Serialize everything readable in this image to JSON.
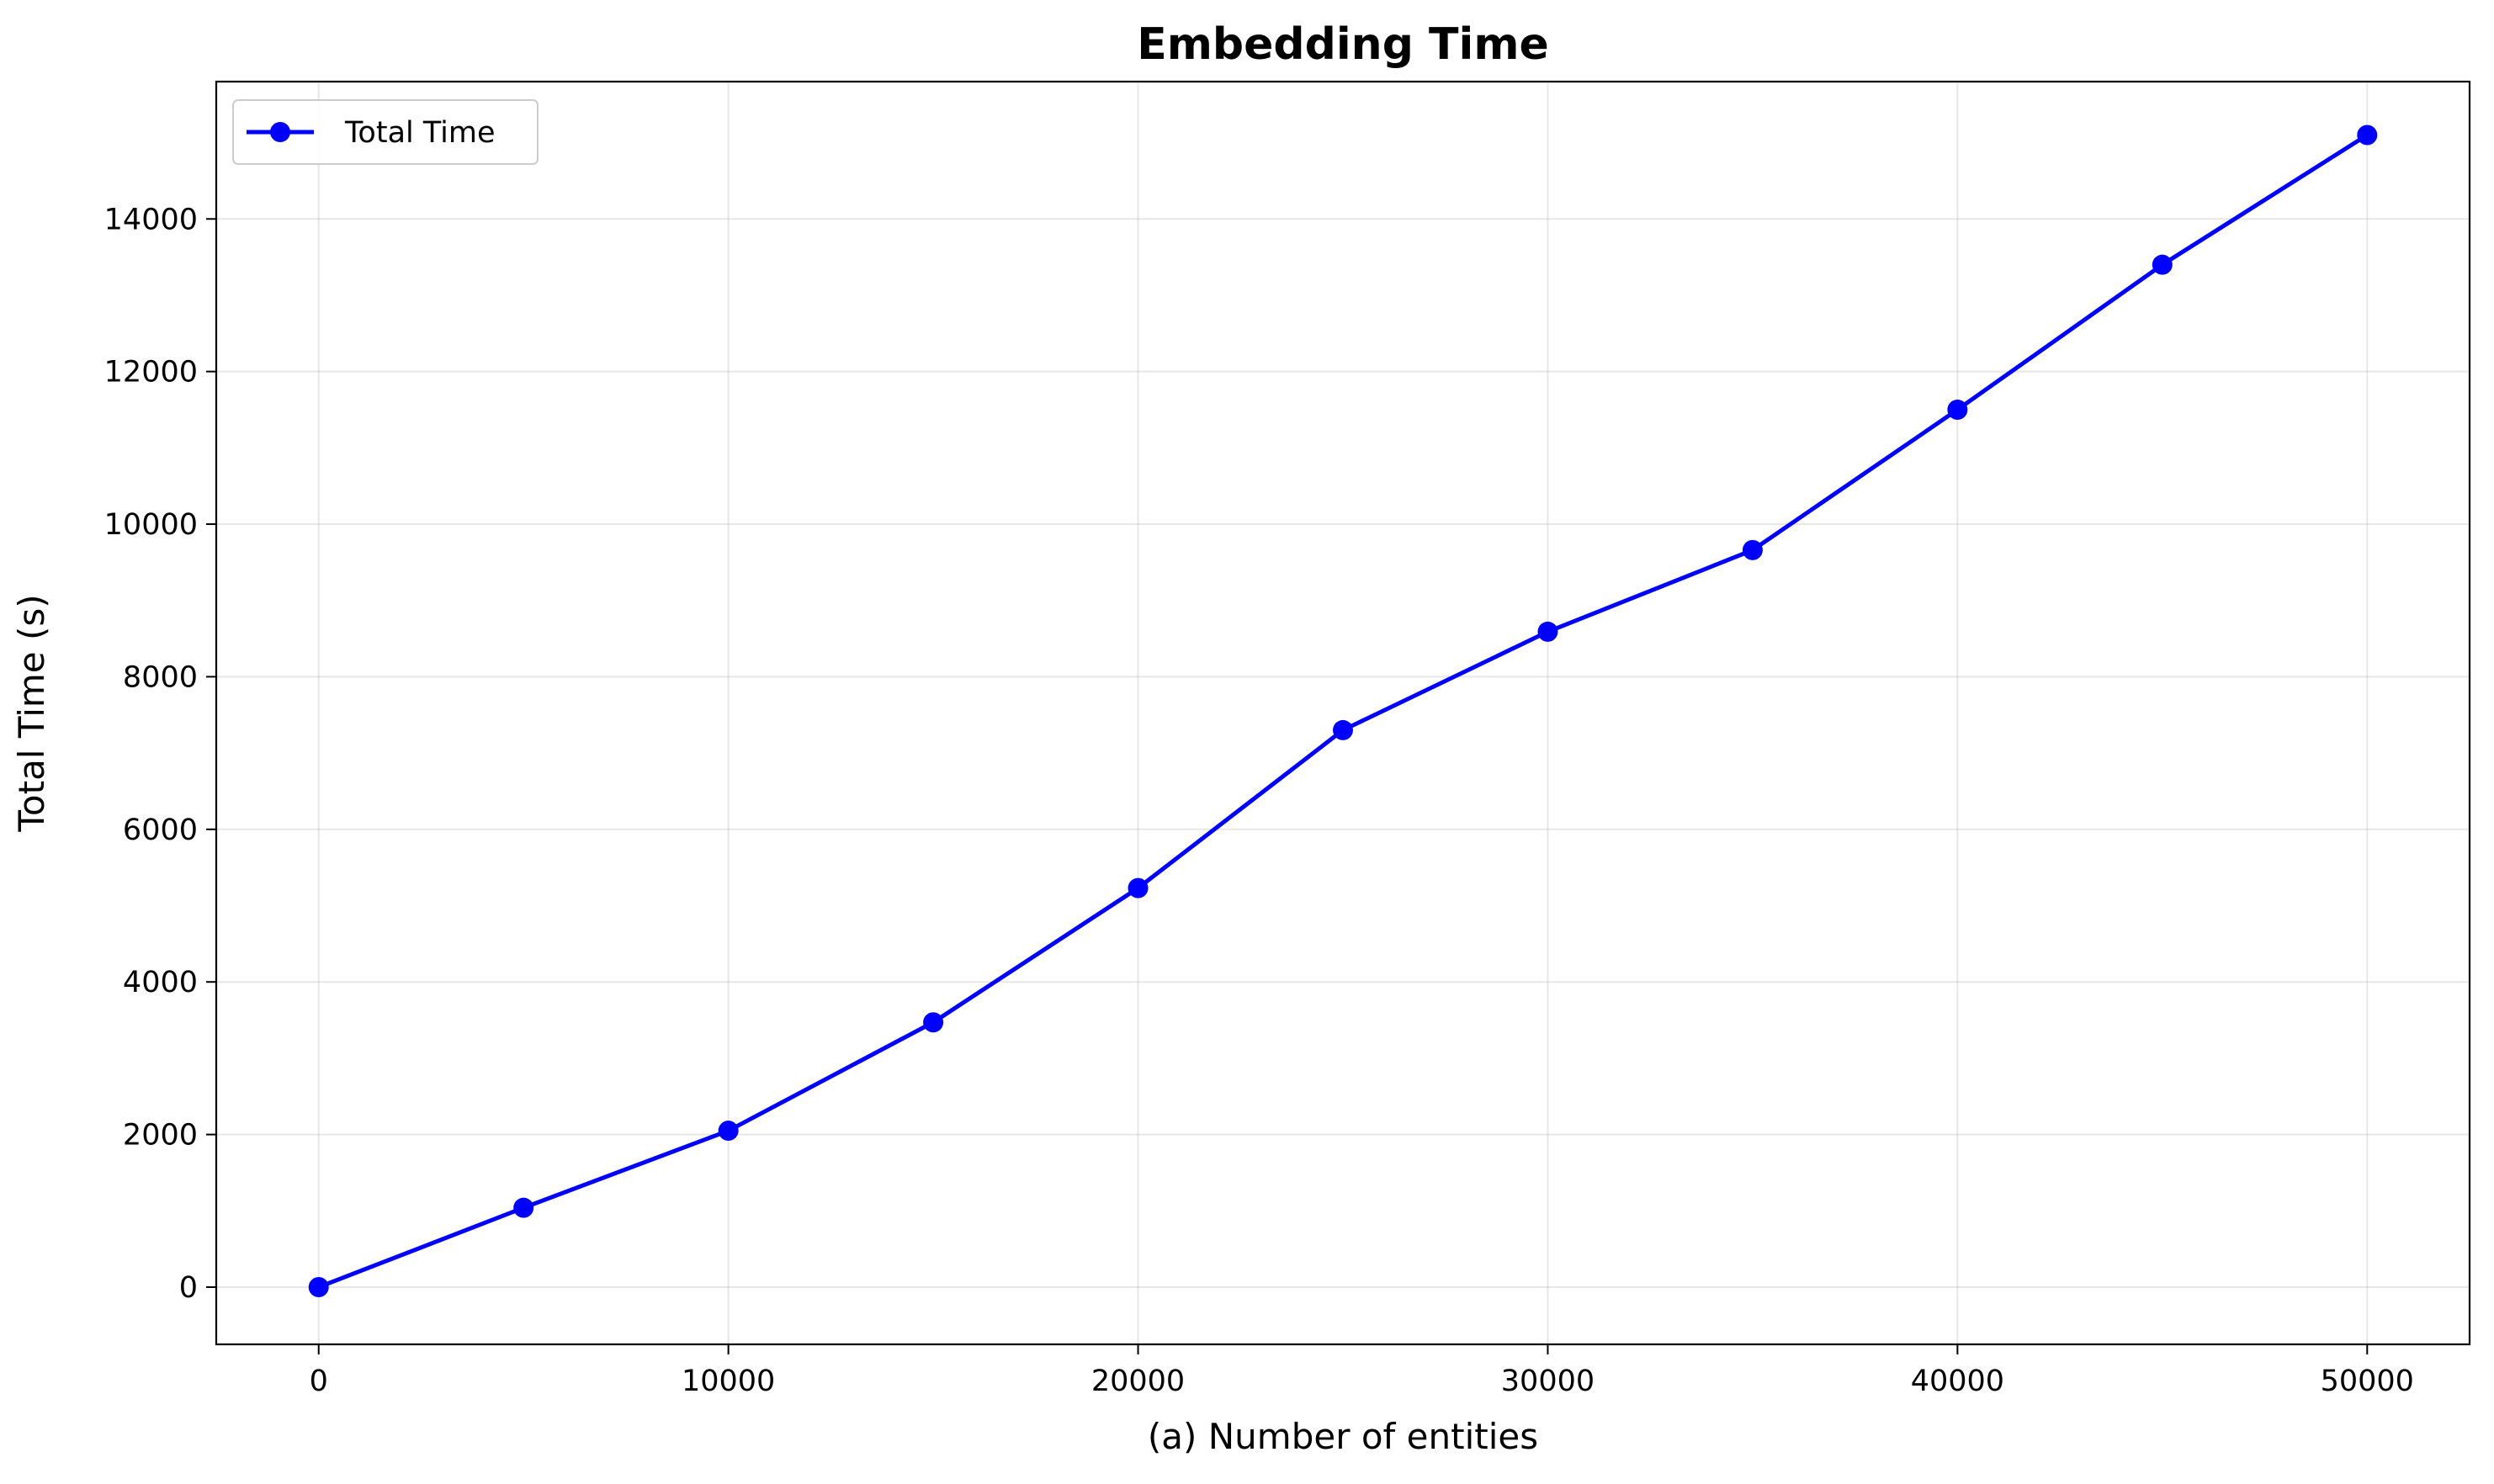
{
  "chart_data": {
    "type": "line",
    "title": "Embedding Time",
    "xlabel": "(a) Number of entities",
    "ylabel": "Total Time (s)",
    "xlim": [
      -2500,
      52500
    ],
    "ylim": [
      -750,
      15800
    ],
    "xticks": [
      0,
      10000,
      20000,
      30000,
      40000,
      50000
    ],
    "yticks": [
      0,
      2000,
      4000,
      6000,
      8000,
      10000,
      12000,
      14000
    ],
    "grid": true,
    "legend_position": "upper-left",
    "series": [
      {
        "name": "Total Time",
        "color": "#0000ff",
        "marker": "circle",
        "x": [
          0,
          5000,
          10000,
          15000,
          20000,
          25000,
          30000,
          35000,
          40000,
          45000,
          50000
        ],
        "y": [
          0,
          1040,
          2050,
          3470,
          5230,
          7300,
          8590,
          9660,
          11500,
          13400,
          15100
        ]
      }
    ]
  }
}
